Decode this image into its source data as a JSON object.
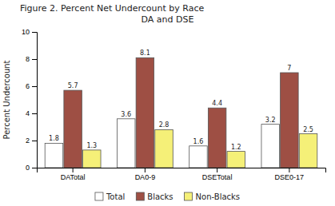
{
  "chart_data": {
    "type": "bar",
    "title": "Figure 2.  Percent Net Undercount by Race",
    "subtitle": "DA and DSE",
    "ylabel": "Percent Undercount",
    "categories": [
      "DATotal",
      "DA0-9",
      "DSETotal",
      "DSE0-17"
    ],
    "series": [
      {
        "name": "Total",
        "color": "#ffffff",
        "values": [
          1.8,
          3.6,
          1.6,
          3.2
        ]
      },
      {
        "name": "Blacks",
        "color": "#9e4f44",
        "values": [
          5.7,
          8.1,
          4.4,
          7.0
        ]
      },
      {
        "name": "Non-Blacks",
        "color": "#f5f078",
        "values": [
          1.3,
          2.8,
          1.2,
          2.5
        ]
      }
    ],
    "ylim": [
      0,
      10
    ],
    "yticks": [
      0,
      2,
      4,
      6,
      8,
      10
    ],
    "grid": false,
    "legend": "bottom",
    "data_labels": true
  }
}
